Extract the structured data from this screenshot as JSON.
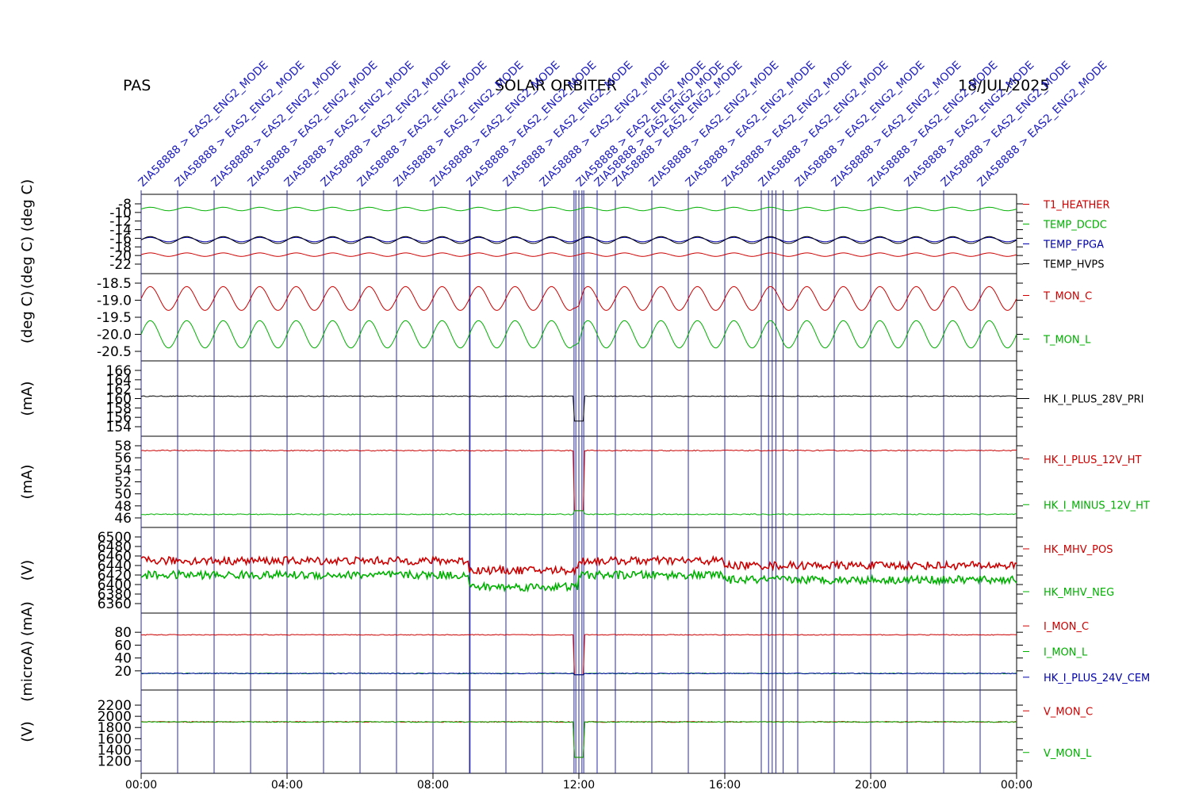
{
  "header": {
    "instrument": "PAS",
    "mission": "SOLAR ORBITER",
    "date": "18/JUL/2025"
  },
  "colors": {
    "red": "#cc0000",
    "green": "#00b000",
    "blue": "#0000aa",
    "black": "#000000",
    "event_line": "#2a2aa8",
    "event_text": "#1e1ebe"
  },
  "events": {
    "label_template": "ZIA58888 > EAS2_ENG2_MODE",
    "times": [
      "00:00",
      "01:00",
      "02:00",
      "03:00",
      "04:00",
      "05:00",
      "06:00",
      "07:00",
      "08:00",
      "09:00",
      "10:00",
      "11:00",
      "12:00",
      "12:30",
      "13:00",
      "14:00",
      "15:00",
      "16:00",
      "17:00",
      "18:00",
      "19:00",
      "20:00",
      "21:00",
      "22:00",
      "23:00"
    ],
    "extra_lines": [
      "09:01",
      "11:52",
      "11:55",
      "12:00",
      "12:05",
      "12:08",
      "17:12",
      "17:18",
      "17:24",
      "17:36"
    ]
  },
  "chart_data": {
    "type": "line",
    "x_ticks": [
      "00:00",
      "04:00",
      "08:00",
      "12:00",
      "16:00",
      "20:00",
      "00:00"
    ],
    "x_range_hours": [
      0,
      24
    ],
    "panels": [
      {
        "ylabel": "(deg C) (deg C)",
        "yticks": [
          "-8",
          "-10",
          "-12",
          "-14",
          "-16",
          "-18",
          "-20",
          "-22"
        ],
        "ylim": [
          -22,
          -8
        ],
        "series": [
          {
            "name": "T1_HEATHER",
            "color": "#cc0000",
            "values": [
              -20.2,
              -19.4,
              -20.2,
              -19.4,
              -20.2
            ]
          },
          {
            "name": "TEMP_DCDC",
            "color": "#00b000",
            "values": [
              -9.6,
              -8.8,
              -9.6,
              -8.8,
              -9.6
            ]
          },
          {
            "name": "TEMP_FPGA",
            "color": "#0000aa",
            "values": [
              -16.8,
              -15.8,
              -17.4,
              -15.8,
              -17.4
            ]
          },
          {
            "name": "TEMP_HVPS",
            "color": "#000000",
            "values": [
              -17.2,
              -15.6,
              -17.8,
              -15.6,
              -17.8
            ]
          }
        ]
      },
      {
        "ylabel": "(deg C)",
        "yticks": [
          "-18.5",
          "-19.0",
          "-19.5",
          "-20.0",
          "-20.5"
        ],
        "ylim": [
          -20.5,
          -18.5
        ],
        "series": [
          {
            "name": "T_MON_C",
            "color": "#cc0000",
            "min": -19.3,
            "max": -18.6
          },
          {
            "name": "T_MON_L",
            "color": "#00b000",
            "min": -20.4,
            "max": -19.6
          }
        ]
      },
      {
        "ylabel": "(mA)",
        "yticks": [
          "166",
          "164",
          "162",
          "160",
          "158",
          "156",
          "154"
        ],
        "ylim": [
          154,
          166
        ],
        "series": [
          {
            "name": "HK_I_PLUS_28V_PRI",
            "color": "#000000",
            "values": [
              160.5,
              160.5,
              155.0,
              160.5,
              160.5
            ]
          }
        ]
      },
      {
        "ylabel": "(mA)",
        "yticks": [
          "58",
          "56",
          "54",
          "52",
          "50",
          "48",
          "46"
        ],
        "ylim": [
          46,
          58
        ],
        "series": [
          {
            "name": "HK_I_PLUS_12V_HT",
            "color": "#cc0000",
            "values": [
              57.2,
              57.2,
              57.2
            ]
          },
          {
            "name": "HK_I_MINUS_12V_HT",
            "color": "#00b000",
            "values": [
              46.6,
              46.6,
              46.6
            ]
          }
        ]
      },
      {
        "ylabel": "(V)",
        "yticks": [
          "6500",
          "6480",
          "6460",
          "6440",
          "6420",
          "6400",
          "6380",
          "6360"
        ],
        "ylim": [
          6360,
          6500
        ],
        "series": [
          {
            "name": "HK_MHV_POS",
            "color": "#cc0000",
            "values": [
              6450,
              6455,
              6430,
              6450,
              6440
            ]
          },
          {
            "name": "HK_MHV_NEG",
            "color": "#00b000",
            "values": [
              6420,
              6425,
              6395,
              6420,
              6410
            ]
          }
        ]
      },
      {
        "ylabel": "(microA) (mA)",
        "yticks": [
          "80",
          "60",
          "40",
          "20"
        ],
        "ylim": [
          5,
          95
        ],
        "series": [
          {
            "name": "I_MON_C",
            "color": "#cc0000",
            "values": [
              76,
              76,
              76
            ]
          },
          {
            "name": "I_MON_L",
            "color": "#00b000",
            "values": [
              16,
              16,
              16
            ]
          },
          {
            "name": "HK_I_PLUS_24V_CEM",
            "color": "#0000aa",
            "values": [
              16,
              16,
              16
            ]
          }
        ]
      },
      {
        "ylabel": "(V)",
        "yticks": [
          "2200",
          "2000",
          "1800",
          "1600",
          "1400",
          "1200"
        ],
        "ylim": [
          1150,
          2300
        ],
        "series": [
          {
            "name": "V_MON_C",
            "color": "#cc0000",
            "values": [
              1900,
              1900,
              1900
            ]
          },
          {
            "name": "V_MON_L",
            "color": "#00b000",
            "values": [
              1900,
              1900,
              1900
            ]
          }
        ]
      }
    ]
  }
}
